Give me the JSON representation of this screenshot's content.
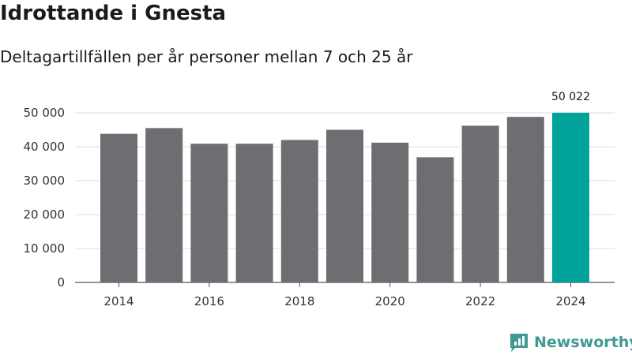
{
  "header": {
    "title": "Idrottande i Gnesta",
    "subtitle": "Deltagartillfällen per år personer mellan 7 och 25 år"
  },
  "brand": {
    "name": "Newsworthy",
    "color": "#3f9a92",
    "icon": "newsworthy-logo-icon"
  },
  "chart_data": {
    "type": "bar",
    "categories": [
      "2014",
      "2015",
      "2016",
      "2017",
      "2018",
      "2019",
      "2020",
      "2021",
      "2022",
      "2023",
      "2024"
    ],
    "values": [
      43800,
      45500,
      40900,
      40900,
      42000,
      45000,
      41200,
      36900,
      46200,
      48800,
      50022
    ],
    "title": "Idrottande i Gnesta",
    "subtitle": "Deltagartillfällen per år personer mellan 7 och 25 år",
    "xlabel": "",
    "ylabel": "",
    "ylim": [
      0,
      50000
    ],
    "yticks": [
      0,
      10000,
      20000,
      30000,
      40000,
      50000
    ],
    "ytick_labels": [
      "0",
      "10 000",
      "20 000",
      "30 000",
      "40 000",
      "50 000"
    ],
    "xtick_labels": [
      "2014",
      "2016",
      "2018",
      "2020",
      "2022",
      "2024"
    ],
    "highlight_index": 10,
    "highlight_label": "50 022",
    "bar_color": "#6e6d72",
    "highlight_color": "#00a39a",
    "grid": true,
    "legend": "none"
  }
}
